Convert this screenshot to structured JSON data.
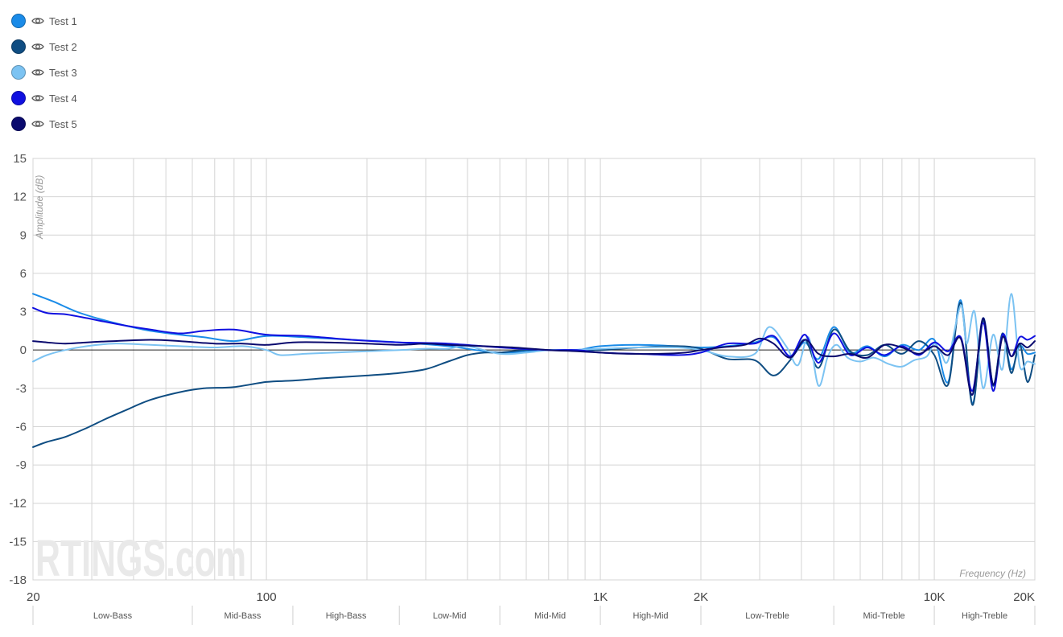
{
  "legend": {
    "items": [
      {
        "label": "Test 1",
        "color": "#1a8be8",
        "icon": "eye-icon"
      },
      {
        "label": "Test 2",
        "color": "#0f4d82",
        "icon": "eye-icon"
      },
      {
        "label": "Test 3",
        "color": "#7cc3f2",
        "icon": "eye-icon"
      },
      {
        "label": "Test 4",
        "color": "#1010e0",
        "icon": "eye-icon"
      },
      {
        "label": "Test 5",
        "color": "#0a0a6e",
        "icon": "eye-icon"
      }
    ]
  },
  "watermark": "RTINGS.com",
  "chart_data": {
    "type": "line",
    "title": "",
    "xlabel": "Frequency (Hz)",
    "ylabel": "Amplitude (dB)",
    "xscale": "log",
    "xlim": [
      20,
      20000
    ],
    "ylim": [
      -18,
      15
    ],
    "grid": true,
    "legend_position": "top-left",
    "y_ticks": [
      "15",
      "12",
      "9",
      "6",
      "3",
      "0",
      "-3",
      "-6",
      "-9",
      "-12",
      "-15",
      "-18"
    ],
    "x_ticks": [
      {
        "value": 20,
        "label": "20"
      },
      {
        "value": 100,
        "label": "100"
      },
      {
        "value": 1000,
        "label": "1K"
      },
      {
        "value": 2000,
        "label": "2K"
      },
      {
        "value": 10000,
        "label": "10K"
      },
      {
        "value": 20000,
        "label": "20K"
      }
    ],
    "bands": [
      {
        "label": "Low-Bass",
        "from": 20,
        "to": 60
      },
      {
        "label": "Mid-Bass",
        "from": 60,
        "to": 120
      },
      {
        "label": "High-Bass",
        "from": 120,
        "to": 250
      },
      {
        "label": "Low-Mid",
        "from": 250,
        "to": 500
      },
      {
        "label": "Mid-Mid",
        "from": 500,
        "to": 1000
      },
      {
        "label": "High-Mid",
        "from": 1000,
        "to": 2000
      },
      {
        "label": "Low-Treble",
        "from": 2000,
        "to": 5000
      },
      {
        "label": "Mid-Treble",
        "from": 5000,
        "to": 10000
      },
      {
        "label": "High-Treble",
        "from": 10000,
        "to": 20000
      }
    ],
    "series": [
      {
        "name": "Test 1",
        "color": "#1a8be8",
        "x": [
          20,
          23,
          27,
          32,
          38,
          45,
          55,
          65,
          80,
          100,
          130,
          180,
          250,
          350,
          500,
          700,
          850,
          1000,
          1300,
          1700,
          2000,
          2400,
          2900,
          3300,
          3700,
          4100,
          4500,
          5000,
          5600,
          6300,
          7100,
          8000,
          9000,
          10000,
          11000,
          12000,
          13000,
          14000,
          15000,
          16000,
          17000,
          18000,
          19000,
          20000
        ],
        "y": [
          4.4,
          3.8,
          3,
          2.4,
          1.9,
          1.5,
          1.2,
          1,
          0.7,
          1.1,
          1,
          0.8,
          0.6,
          0.3,
          -0.2,
          0,
          0,
          0.3,
          0.4,
          0.3,
          0.2,
          0.3,
          0.6,
          1,
          -0.5,
          0.6,
          -0.7,
          1.8,
          -0.2,
          0.3,
          -0.5,
          0.4,
          0,
          0.8,
          -2.5,
          3.9,
          -4.2,
          2.5,
          -2.7,
          1.2,
          -1.5,
          0.3,
          -0.3,
          -0.2
        ]
      },
      {
        "name": "Test 2",
        "color": "#0f4d82",
        "x": [
          20,
          22,
          25,
          29,
          33,
          38,
          45,
          55,
          65,
          80,
          100,
          120,
          150,
          200,
          250,
          300,
          350,
          400,
          450,
          500,
          600,
          700,
          800,
          1000,
          1300,
          1700,
          2000,
          2400,
          2900,
          3300,
          3700,
          4100,
          4500,
          5000,
          5600,
          6300,
          7100,
          8000,
          9000,
          10000,
          11000,
          12000,
          13000,
          14000,
          15000,
          16000,
          17000,
          18000,
          19000,
          20000
        ],
        "y": [
          -7.6,
          -7.2,
          -6.8,
          -6.1,
          -5.4,
          -4.7,
          -3.9,
          -3.3,
          -3,
          -2.9,
          -2.5,
          -2.4,
          -2.2,
          -2,
          -1.8,
          -1.5,
          -0.9,
          -0.4,
          -0.2,
          -0.2,
          0,
          0,
          0,
          0,
          0.2,
          0.3,
          0.1,
          -0.7,
          -0.8,
          -2,
          -0.8,
          0.8,
          -1.4,
          1.6,
          -0.1,
          -0.4,
          0.4,
          -0.3,
          0.7,
          -0.4,
          -2.7,
          3.7,
          -4.3,
          2.3,
          -2.8,
          1.3,
          -1.8,
          0.5,
          -2.5,
          -0.4
        ]
      },
      {
        "name": "Test 3",
        "color": "#7cc3f2",
        "x": [
          20,
          22,
          25,
          29,
          35,
          45,
          55,
          70,
          85,
          100,
          110,
          130,
          160,
          200,
          250,
          300,
          350,
          400,
          500,
          600,
          700,
          800,
          1000,
          1300,
          1700,
          2000,
          2400,
          2900,
          3200,
          3600,
          3900,
          4200,
          4500,
          4800,
          5100,
          5500,
          6000,
          6600,
          7300,
          8000,
          8700,
          9500,
          10000,
          10500,
          11000,
          12000,
          12500,
          13200,
          14000,
          15000,
          16000,
          17000,
          18000,
          19000,
          20000
        ],
        "y": [
          -0.9,
          -0.4,
          0,
          0.3,
          0.5,
          0.4,
          0.3,
          0.2,
          0.3,
          0,
          -0.4,
          -0.3,
          -0.2,
          -0.1,
          0,
          0.1,
          0.1,
          0.3,
          -0.3,
          -0.2,
          0,
          0,
          0.1,
          0.2,
          0.2,
          0,
          -0.5,
          -0.3,
          1.8,
          0.3,
          -1.2,
          1,
          -2.8,
          -0.5,
          0.4,
          -0.6,
          -0.9,
          -0.6,
          -1.1,
          -1.3,
          -0.8,
          -0.5,
          0.5,
          -0.3,
          -0.8,
          3.5,
          0.5,
          3,
          -3,
          1.2,
          -1.5,
          4.4,
          -1.2,
          -0.9,
          -1.1
        ]
      },
      {
        "name": "Test 4",
        "color": "#1010e0",
        "x": [
          20,
          22,
          25,
          29,
          33,
          38,
          45,
          55,
          65,
          80,
          100,
          130,
          180,
          250,
          350,
          500,
          700,
          850,
          1000,
          1300,
          1700,
          2000,
          2400,
          2900,
          3300,
          3700,
          4100,
          4500,
          5000,
          5600,
          6300,
          7100,
          8000,
          9000,
          10000,
          11000,
          12000,
          13000,
          14000,
          15000,
          16000,
          17000,
          18000,
          19000,
          20000
        ],
        "y": [
          3.3,
          2.9,
          2.8,
          2.5,
          2.2,
          1.9,
          1.6,
          1.3,
          1.5,
          1.6,
          1.2,
          1.1,
          0.8,
          0.6,
          0.5,
          0.2,
          0,
          0,
          -0.2,
          -0.3,
          -0.4,
          -0.2,
          0.5,
          0.5,
          1.1,
          -0.5,
          1.2,
          -1,
          1.3,
          -0.4,
          0.2,
          -0.4,
          0.3,
          -0.4,
          0.6,
          -0.1,
          1,
          -3.2,
          2.1,
          -3.2,
          1.2,
          -0.5,
          1,
          0.8,
          1.1
        ]
      },
      {
        "name": "Test 5",
        "color": "#0a0a6e",
        "x": [
          20,
          22,
          25,
          29,
          35,
          45,
          55,
          70,
          85,
          100,
          120,
          150,
          200,
          250,
          300,
          350,
          450,
          550,
          700,
          850,
          1000,
          1200,
          1500,
          1800,
          2000,
          2300,
          2700,
          3000,
          3300,
          3700,
          4100,
          4500,
          5000,
          5600,
          6300,
          7100,
          8000,
          9000,
          10000,
          11000,
          12000,
          13000,
          14000,
          15000,
          16000,
          17000,
          18000,
          19000,
          20000
        ],
        "y": [
          0.7,
          0.6,
          0.5,
          0.6,
          0.7,
          0.8,
          0.7,
          0.5,
          0.5,
          0.4,
          0.6,
          0.6,
          0.5,
          0.4,
          0.5,
          0.4,
          0.3,
          0.2,
          0,
          -0.1,
          -0.2,
          -0.3,
          -0.3,
          -0.2,
          0,
          0.2,
          0.4,
          0.9,
          0.5,
          -0.6,
          0.8,
          -0.3,
          -0.5,
          -0.3,
          -0.6,
          0.4,
          0.2,
          -0.3,
          0.3,
          -0.4,
          0.9,
          -3.5,
          2.5,
          -2.7,
          1,
          -0.5,
          0.5,
          0.2,
          0.7
        ]
      }
    ]
  }
}
